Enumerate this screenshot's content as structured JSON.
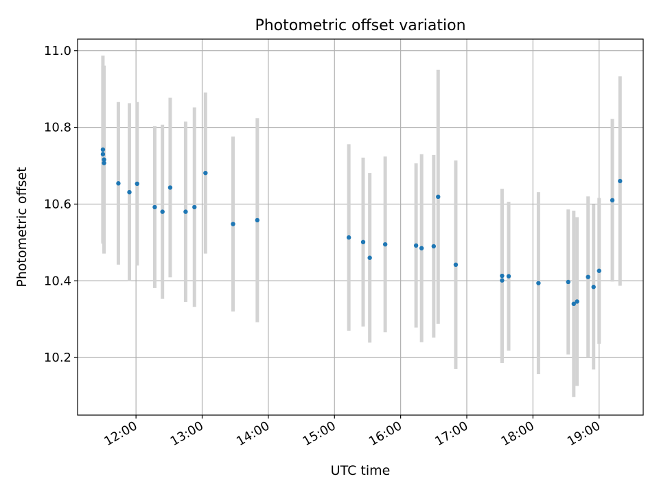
{
  "chart_data": {
    "type": "scatter",
    "title": "Photometric offset variation",
    "xlabel": "UTC time",
    "ylabel": "Photometric offset",
    "x_ticks": [
      "12:00",
      "13:00",
      "14:00",
      "15:00",
      "16:00",
      "17:00",
      "18:00",
      "19:00"
    ],
    "y_ticks": [
      "10.2",
      "10.4",
      "10.6",
      "10.8",
      "11.0"
    ],
    "xlim": [
      "11:07",
      "19:40"
    ],
    "ylim": [
      10.05,
      11.03
    ],
    "grid": true,
    "colors": {
      "point": "#1f77b4",
      "errorbar": "#d3d3d3",
      "grid": "#b0b0b0"
    },
    "points": [
      {
        "x": "11:30",
        "y": 10.742,
        "err": 0.245
      },
      {
        "x": "11:30",
        "y": 10.73,
        "err": 0.23
      },
      {
        "x": "11:31",
        "y": 10.716,
        "err": 0.245
      },
      {
        "x": "11:31",
        "y": 10.707,
        "err": 0.23
      },
      {
        "x": "11:44",
        "y": 10.654,
        "err": 0.212
      },
      {
        "x": "11:54",
        "y": 10.631,
        "err": 0.232
      },
      {
        "x": "12:01",
        "y": 10.653,
        "err": 0.213
      },
      {
        "x": "12:17",
        "y": 10.592,
        "err": 0.211
      },
      {
        "x": "12:24",
        "y": 10.58,
        "err": 0.227
      },
      {
        "x": "12:31",
        "y": 10.643,
        "err": 0.234
      },
      {
        "x": "12:45",
        "y": 10.58,
        "err": 0.235
      },
      {
        "x": "12:53",
        "y": 10.592,
        "err": 0.26
      },
      {
        "x": "13:03",
        "y": 10.681,
        "err": 0.21
      },
      {
        "x": "13:28",
        "y": 10.548,
        "err": 0.228
      },
      {
        "x": "13:50",
        "y": 10.558,
        "err": 0.266
      },
      {
        "x": "15:13",
        "y": 10.513,
        "err": 0.243
      },
      {
        "x": "15:26",
        "y": 10.501,
        "err": 0.22
      },
      {
        "x": "15:32",
        "y": 10.46,
        "err": 0.221
      },
      {
        "x": "15:46",
        "y": 10.495,
        "err": 0.229
      },
      {
        "x": "16:14",
        "y": 10.492,
        "err": 0.214
      },
      {
        "x": "16:19",
        "y": 10.485,
        "err": 0.245
      },
      {
        "x": "16:30",
        "y": 10.49,
        "err": 0.238
      },
      {
        "x": "16:34",
        "y": 10.619,
        "err": 0.331
      },
      {
        "x": "16:50",
        "y": 10.442,
        "err": 0.272
      },
      {
        "x": "17:32",
        "y": 10.413,
        "err": 0.227
      },
      {
        "x": "17:32",
        "y": 10.401,
        "err": 0.21
      },
      {
        "x": "17:38",
        "y": 10.412,
        "err": 0.194
      },
      {
        "x": "18:05",
        "y": 10.394,
        "err": 0.237
      },
      {
        "x": "18:32",
        "y": 10.397,
        "err": 0.189
      },
      {
        "x": "18:37",
        "y": 10.34,
        "err": 0.243
      },
      {
        "x": "18:40",
        "y": 10.346,
        "err": 0.22
      },
      {
        "x": "18:50",
        "y": 10.41,
        "err": 0.21
      },
      {
        "x": "18:55",
        "y": 10.384,
        "err": 0.215
      },
      {
        "x": "19:00",
        "y": 10.426,
        "err": 0.19
      },
      {
        "x": "19:12",
        "y": 10.61,
        "err": 0.212
      },
      {
        "x": "19:19",
        "y": 10.66,
        "err": 0.273
      }
    ]
  }
}
